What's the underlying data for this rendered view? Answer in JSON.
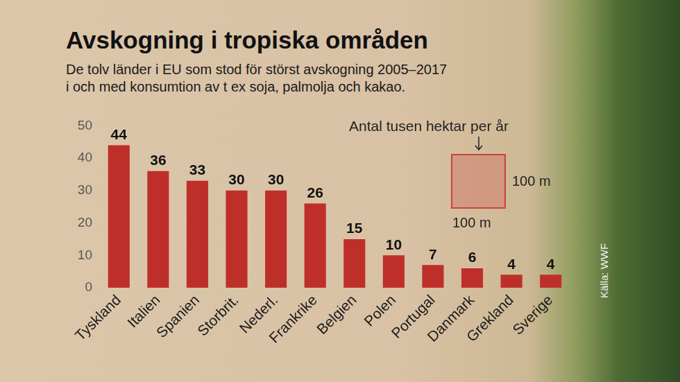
{
  "chart_data": {
    "type": "bar",
    "title": "Avskogning i tropiska områden",
    "subtitle": [
      "De tolv länder i EU som stod för störst avskogning 2005–2017",
      "i och med konsumtion av t ex soja, palmolja och kakao."
    ],
    "categories": [
      "Tyskland",
      "Italien",
      "Spanien",
      "Storbrit.",
      "Nederl.",
      "Frankrike",
      "Belgien",
      "Polen",
      "Portugal",
      "Danmark",
      "Grekland",
      "Sverige"
    ],
    "values": [
      44,
      36,
      33,
      30,
      30,
      26,
      15,
      10,
      7,
      6,
      4,
      4
    ],
    "color": "#bf2f2a",
    "ylim": [
      0,
      50
    ],
    "yticks": [
      0,
      10,
      20,
      30,
      40,
      50
    ],
    "grid": false,
    "data_labels": true,
    "annotations": [
      "Antal tusen hektar per år",
      "100 m",
      "100 m"
    ],
    "source": "Källa: WWF"
  }
}
